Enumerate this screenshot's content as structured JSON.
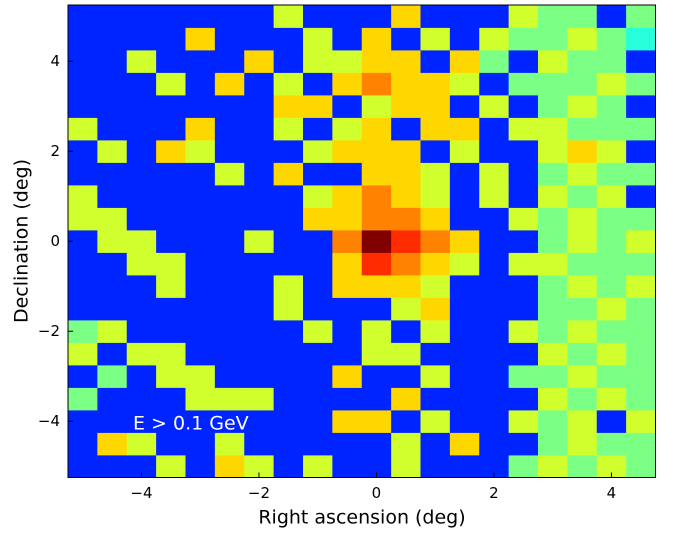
{
  "chart_data": {
    "type": "heatmap",
    "colormap": "jet",
    "xlabel": "Right ascension (deg)",
    "ylabel": "Declination (deg)",
    "annotation": "E > 0.1 GeV",
    "xlim": [
      -5.25,
      4.75
    ],
    "ylim": [
      -5.25,
      5.25
    ],
    "xticks": [
      {
        "value": -4,
        "label": "−4"
      },
      {
        "value": -2,
        "label": "−2"
      },
      0,
      2,
      4
    ],
    "yticks": [
      {
        "value": -4,
        "label": "−4"
      },
      {
        "value": -2,
        "label": "−2"
      },
      0,
      2,
      4
    ],
    "xbins": [
      -5.25,
      -4.75,
      -4.25,
      -3.75,
      -3.25,
      -2.75,
      -2.25,
      -1.75,
      -1.25,
      -0.75,
      -0.25,
      0.25,
      0.75,
      1.25,
      1.75,
      2.25,
      2.75,
      3.25,
      3.75,
      4.25,
      4.75
    ],
    "ybins": [
      -5.25,
      -4.75,
      -4.25,
      -3.75,
      -3.25,
      -2.75,
      -2.25,
      -1.75,
      -1.25,
      -0.75,
      -0.25,
      0.25,
      0.75,
      1.25,
      1.75,
      2.25,
      2.75,
      3.25,
      3.75,
      4.25,
      4.75,
      5.25
    ],
    "z": [
      [
        0,
        0,
        0,
        5,
        0,
        6,
        5,
        0,
        5,
        0,
        0,
        5,
        0,
        0,
        0,
        4,
        5,
        4,
        5,
        4
      ],
      [
        0,
        6,
        5,
        0,
        0,
        5,
        0,
        0,
        0,
        0,
        0,
        5,
        0,
        6,
        0,
        0,
        4,
        5,
        4,
        4
      ],
      [
        0,
        0,
        0,
        0,
        0,
        0,
        0,
        0,
        0,
        6,
        6,
        0,
        5,
        0,
        0,
        5,
        4,
        5,
        0,
        5
      ],
      [
        4,
        0,
        0,
        0,
        5,
        5,
        5,
        0,
        0,
        0,
        0,
        6,
        0,
        0,
        0,
        0,
        5,
        4,
        5,
        4
      ],
      [
        0,
        4,
        0,
        5,
        5,
        0,
        0,
        0,
        0,
        6,
        0,
        0,
        5,
        0,
        0,
        4,
        4,
        5,
        4,
        4
      ],
      [
        5,
        0,
        5,
        5,
        0,
        0,
        0,
        0,
        0,
        0,
        5,
        5,
        0,
        0,
        0,
        0,
        5,
        4,
        5,
        4
      ],
      [
        4,
        5,
        0,
        0,
        0,
        0,
        0,
        0,
        5,
        0,
        5,
        0,
        5,
        0,
        0,
        5,
        4,
        5,
        4,
        4
      ],
      [
        0,
        0,
        0,
        0,
        0,
        0,
        0,
        5,
        0,
        0,
        0,
        5,
        6,
        0,
        0,
        0,
        4,
        4,
        5,
        4
      ],
      [
        0,
        0,
        0,
        5,
        0,
        0,
        0,
        5,
        0,
        6,
        6,
        6,
        5,
        0,
        0,
        0,
        4,
        5,
        4,
        5
      ],
      [
        0,
        0,
        5,
        5,
        0,
        0,
        0,
        0,
        0,
        6,
        8,
        7,
        6,
        5,
        0,
        5,
        5,
        4,
        4,
        4
      ],
      [
        0,
        5,
        5,
        0,
        0,
        0,
        5,
        0,
        0,
        7,
        10,
        8,
        7,
        6,
        0,
        0,
        4,
        5,
        4,
        5
      ],
      [
        5,
        5,
        0,
        0,
        0,
        0,
        0,
        0,
        6,
        6,
        7,
        7,
        6,
        0,
        0,
        5,
        4,
        5,
        4,
        4
      ],
      [
        5,
        0,
        0,
        0,
        0,
        0,
        0,
        0,
        5,
        6,
        7,
        6,
        5,
        0,
        5,
        0,
        5,
        4,
        5,
        0
      ],
      [
        0,
        0,
        0,
        0,
        0,
        5,
        0,
        6,
        0,
        0,
        6,
        6,
        5,
        0,
        5,
        0,
        4,
        5,
        4,
        4
      ],
      [
        0,
        5,
        0,
        6,
        5,
        0,
        0,
        0,
        5,
        6,
        6,
        6,
        0,
        5,
        0,
        0,
        5,
        6,
        5,
        0
      ],
      [
        5,
        0,
        0,
        0,
        6,
        0,
        0,
        5,
        0,
        5,
        6,
        0,
        6,
        6,
        0,
        5,
        5,
        4,
        4,
        4
      ],
      [
        0,
        0,
        0,
        0,
        0,
        0,
        0,
        6,
        6,
        0,
        5,
        6,
        6,
        0,
        5,
        0,
        4,
        5,
        4,
        0
      ],
      [
        0,
        0,
        0,
        5,
        0,
        6,
        0,
        5,
        0,
        6,
        7,
        6,
        6,
        5,
        0,
        4,
        4,
        4,
        5,
        4
      ],
      [
        0,
        0,
        5,
        0,
        0,
        0,
        6,
        0,
        5,
        5,
        6,
        6,
        0,
        6,
        4,
        0,
        5,
        4,
        4,
        0
      ],
      [
        0,
        0,
        0,
        0,
        6,
        0,
        0,
        0,
        5,
        0,
        6,
        0,
        5,
        0,
        5,
        4,
        4,
        5,
        4,
        3
      ],
      [
        0,
        0,
        0,
        0,
        0,
        0,
        0,
        5,
        0,
        0,
        0,
        6,
        0,
        0,
        0,
        5,
        4,
        4,
        0,
        4
      ]
    ]
  }
}
